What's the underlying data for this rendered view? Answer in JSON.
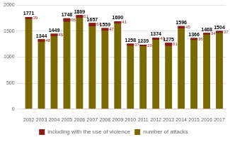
{
  "chart_data": {
    "type": "bar",
    "categories": [
      "2002",
      "2003",
      "2004",
      "2005",
      "2006",
      "2007",
      "2008",
      "2009",
      "2010",
      "2011",
      "2012",
      "2013",
      "2014",
      "2015",
      "2016",
      "2017"
    ],
    "series": [
      {
        "name": "including with the use of violence",
        "color": "#8b1a1a",
        "values": [
          39,
          48,
          45,
          65,
          51,
          64,
          47,
          41,
          37,
          29,
          41,
          61,
          45,
          36,
          34,
          37
        ]
      },
      {
        "name": "number of attacks",
        "color": "#7a6800",
        "values": [
          1771,
          1344,
          1449,
          1748,
          1809,
          1657,
          1559,
          1690,
          1258,
          1239,
          1374,
          1275,
          1596,
          1366,
          1468,
          1504
        ]
      }
    ],
    "ylim": [
      0,
      2000
    ],
    "yticks": [
      0,
      500,
      1000,
      1500,
      2000
    ],
    "grid": true,
    "legend": "bottom",
    "data_labels": true
  }
}
